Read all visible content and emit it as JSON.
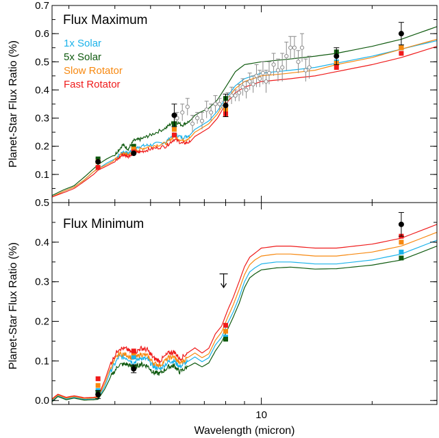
{
  "colors": {
    "solar1x": "#1ab2ea",
    "solar5x": "#0f5a0f",
    "slow": "#f7880f",
    "fast": "#ef1a1a",
    "obs": "#000000",
    "hires": "#8a8a8a"
  },
  "chart_data": [
    {
      "type": "line",
      "title": "Flux Maximum",
      "xlabel": "",
      "ylabel": "Planet-Star Flux Ratio (%)",
      "x_scale": "log",
      "xlim": [
        2.7,
        30
      ],
      "ylim": [
        0.0,
        0.7
      ],
      "yticks": [
        0.1,
        0.2,
        0.3,
        0.4,
        0.5,
        0.6,
        0.7
      ],
      "ytick_labels": [
        "0.1",
        "0.2",
        "0.3",
        "0.4",
        "0.5",
        "0.6",
        "0.7"
      ],
      "legend": [
        "1x Solar",
        "5x Solar",
        "Slow Rotator",
        "Fast Rotator"
      ],
      "legend_position": "top-left",
      "series": [
        {
          "name": "1x Solar",
          "color_key": "solar1x",
          "noise": true,
          "x": [
            2.7,
            2.9,
            3.1,
            3.3,
            3.5,
            3.6,
            3.8,
            4.0,
            4.2,
            4.35,
            4.5,
            4.7,
            5.0,
            5.5,
            5.8,
            6.1,
            6.4,
            6.6,
            6.8,
            7.2,
            7.6,
            8.0,
            8.5,
            9.0,
            9.5,
            10.0,
            11,
            12,
            14,
            16,
            20,
            24,
            30
          ],
          "y": [
            0.02,
            0.04,
            0.055,
            0.08,
            0.11,
            0.12,
            0.14,
            0.155,
            0.18,
            0.175,
            0.19,
            0.2,
            0.205,
            0.215,
            0.245,
            0.23,
            0.24,
            0.26,
            0.27,
            0.29,
            0.325,
            0.37,
            0.415,
            0.44,
            0.45,
            0.46,
            0.465,
            0.47,
            0.48,
            0.495,
            0.52,
            0.545,
            0.575
          ]
        },
        {
          "name": "5x Solar",
          "color_key": "solar5x",
          "noise": true,
          "x": [
            2.7,
            2.9,
            3.1,
            3.3,
            3.5,
            3.6,
            3.8,
            4.0,
            4.2,
            4.35,
            4.5,
            4.7,
            5.0,
            5.5,
            5.8,
            6.1,
            6.4,
            6.6,
            6.8,
            7.2,
            7.6,
            8.0,
            8.5,
            9.0,
            9.5,
            10.0,
            11,
            12,
            14,
            16,
            20,
            24,
            30
          ],
          "y": [
            0.025,
            0.045,
            0.06,
            0.09,
            0.12,
            0.135,
            0.155,
            0.17,
            0.205,
            0.19,
            0.22,
            0.225,
            0.24,
            0.265,
            0.29,
            0.275,
            0.29,
            0.31,
            0.32,
            0.335,
            0.365,
            0.41,
            0.465,
            0.49,
            0.495,
            0.5,
            0.505,
            0.51,
            0.52,
            0.53,
            0.555,
            0.58,
            0.625
          ]
        },
        {
          "name": "Slow Rotator",
          "color_key": "slow",
          "noise": true,
          "x": [
            2.7,
            2.9,
            3.1,
            3.3,
            3.5,
            3.6,
            3.8,
            4.0,
            4.2,
            4.35,
            4.5,
            4.7,
            5.0,
            5.5,
            5.8,
            6.1,
            6.4,
            6.6,
            6.8,
            7.2,
            7.6,
            8.0,
            8.5,
            9.0,
            9.5,
            10.0,
            11,
            12,
            14,
            16,
            20,
            24,
            30
          ],
          "y": [
            0.02,
            0.04,
            0.055,
            0.08,
            0.11,
            0.12,
            0.135,
            0.15,
            0.175,
            0.17,
            0.18,
            0.19,
            0.2,
            0.21,
            0.235,
            0.22,
            0.23,
            0.25,
            0.26,
            0.28,
            0.315,
            0.36,
            0.405,
            0.43,
            0.44,
            0.45,
            0.455,
            0.46,
            0.47,
            0.49,
            0.515,
            0.545,
            0.58
          ]
        },
        {
          "name": "Fast Rotator",
          "color_key": "fast",
          "noise": true,
          "x": [
            2.7,
            2.9,
            3.1,
            3.3,
            3.5,
            3.6,
            3.8,
            4.0,
            4.2,
            4.35,
            4.5,
            4.7,
            5.0,
            5.5,
            5.8,
            6.1,
            6.4,
            6.6,
            6.8,
            7.2,
            7.6,
            8.0,
            8.5,
            9.0,
            9.5,
            10.0,
            11,
            12,
            14,
            16,
            20,
            24,
            30
          ],
          "y": [
            0.02,
            0.035,
            0.05,
            0.075,
            0.1,
            0.115,
            0.13,
            0.145,
            0.17,
            0.165,
            0.175,
            0.18,
            0.19,
            0.2,
            0.225,
            0.21,
            0.215,
            0.235,
            0.245,
            0.265,
            0.3,
            0.35,
            0.39,
            0.41,
            0.42,
            0.43,
            0.435,
            0.44,
            0.45,
            0.465,
            0.49,
            0.515,
            0.555
          ]
        }
      ],
      "band_points": {
        "x": [
          3.6,
          4.5,
          5.8,
          8.0,
          16.0,
          24.0
        ],
        "1x Solar": [
          0.15,
          0.19,
          0.27,
          0.34,
          0.5,
          0.55
        ],
        "5x Solar": [
          0.155,
          0.2,
          0.28,
          0.37,
          0.535,
          0.55
        ],
        "Slow Rotator": [
          0.145,
          0.19,
          0.26,
          0.33,
          0.495,
          0.55
        ],
        "Fast Rotator": [
          0.125,
          0.18,
          0.24,
          0.315,
          0.48,
          0.53
        ]
      },
      "observations": {
        "x": [
          3.6,
          4.5,
          5.8,
          8.0,
          16.0,
          24.0
        ],
        "y": [
          0.145,
          0.175,
          0.31,
          0.345,
          0.52,
          0.6
        ],
        "err": [
          0.0,
          0.0,
          0.04,
          0.04,
          0.03,
          0.04
        ]
      },
      "spectrum": {
        "x": [
          5.9,
          6.1,
          6.3,
          6.5,
          6.7,
          6.9,
          7.1,
          7.3,
          7.5,
          7.7,
          7.9,
          8.1,
          8.3,
          8.5,
          8.7,
          8.9,
          9.1,
          9.3,
          9.5,
          9.7,
          9.9,
          10.1,
          10.3,
          10.5,
          10.8,
          11.1,
          11.4,
          11.7,
          12.0,
          12.3,
          12.6,
          12.9,
          13.2,
          13.5
        ],
        "y": [
          0.3,
          0.32,
          0.34,
          0.28,
          0.3,
          0.29,
          0.33,
          0.32,
          0.35,
          0.35,
          0.34,
          0.37,
          0.38,
          0.38,
          0.39,
          0.41,
          0.4,
          0.43,
          0.42,
          0.45,
          0.44,
          0.46,
          0.43,
          0.46,
          0.49,
          0.47,
          0.48,
          0.52,
          0.55,
          0.55,
          0.5,
          0.55,
          0.47,
          0.48
        ],
        "err": [
          0.02,
          0.03,
          0.03,
          0.03,
          0.02,
          0.03,
          0.03,
          0.03,
          0.03,
          0.02,
          0.02,
          0.02,
          0.03,
          0.02,
          0.03,
          0.03,
          0.03,
          0.03,
          0.03,
          0.04,
          0.03,
          0.04,
          0.04,
          0.04,
          0.04,
          0.04,
          0.05,
          0.05,
          0.04,
          0.04,
          0.04,
          0.05,
          0.04,
          0.04
        ]
      }
    },
    {
      "type": "line",
      "title": "Flux Minimum",
      "xlabel": "Wavelength (micron)",
      "ylabel": "Planet-Star Flux Ratio (%)",
      "x_scale": "log",
      "xlim": [
        2.7,
        30
      ],
      "xticks": [
        10
      ],
      "xtick_labels": [
        "10"
      ],
      "ylim": [
        -0.01,
        0.5
      ],
      "yticks": [
        0.0,
        0.1,
        0.2,
        0.3,
        0.4,
        0.5
      ],
      "ytick_labels": [
        "0.0",
        "0.1",
        "0.2",
        "0.3",
        "0.4",
        "0.5"
      ],
      "series": [
        {
          "name": "1x Solar",
          "color_key": "solar1x",
          "noise": true,
          "x": [
            2.7,
            2.8,
            2.95,
            3.1,
            3.3,
            3.5,
            3.6,
            3.75,
            3.9,
            4.1,
            4.3,
            4.5,
            4.7,
            4.9,
            5.1,
            5.3,
            5.6,
            5.8,
            6.0,
            6.3,
            6.6,
            6.9,
            7.2,
            7.5,
            7.8,
            8.1,
            8.4,
            8.7,
            9.0,
            9.3,
            9.6,
            10.0,
            11,
            12,
            14,
            16,
            20,
            24,
            30
          ],
          "y": [
            0.0,
            0.012,
            0.004,
            0.008,
            0.003,
            0.004,
            0.005,
            0.035,
            0.075,
            0.11,
            0.108,
            0.095,
            0.108,
            0.104,
            0.085,
            0.08,
            0.098,
            0.1,
            0.085,
            0.098,
            0.11,
            0.098,
            0.108,
            0.14,
            0.16,
            0.195,
            0.225,
            0.26,
            0.3,
            0.325,
            0.335,
            0.345,
            0.35,
            0.35,
            0.345,
            0.345,
            0.355,
            0.37,
            0.405
          ]
        },
        {
          "name": "5x Solar",
          "color_key": "solar5x",
          "noise": true,
          "x": [
            2.7,
            2.8,
            2.95,
            3.1,
            3.3,
            3.5,
            3.6,
            3.75,
            3.9,
            4.1,
            4.3,
            4.5,
            4.7,
            4.9,
            5.1,
            5.3,
            5.6,
            5.8,
            6.0,
            6.3,
            6.6,
            6.9,
            7.2,
            7.5,
            7.8,
            8.1,
            8.4,
            8.7,
            9.0,
            9.3,
            9.6,
            10.0,
            11,
            12,
            14,
            16,
            20,
            24,
            30
          ],
          "y": [
            -0.003,
            0.01,
            0.002,
            0.006,
            0.001,
            0.002,
            0.003,
            0.028,
            0.06,
            0.09,
            0.092,
            0.082,
            0.092,
            0.088,
            0.07,
            0.068,
            0.085,
            0.088,
            0.072,
            0.085,
            0.095,
            0.085,
            0.095,
            0.125,
            0.148,
            0.18,
            0.212,
            0.245,
            0.285,
            0.31,
            0.32,
            0.33,
            0.335,
            0.337,
            0.332,
            0.333,
            0.342,
            0.355,
            0.39
          ]
        },
        {
          "name": "Slow Rotator",
          "color_key": "slow",
          "noise": true,
          "x": [
            2.7,
            2.8,
            2.95,
            3.1,
            3.3,
            3.5,
            3.6,
            3.75,
            3.9,
            4.1,
            4.3,
            4.5,
            4.7,
            4.9,
            5.1,
            5.3,
            5.6,
            5.8,
            6.0,
            6.3,
            6.6,
            6.9,
            7.2,
            7.5,
            7.8,
            8.1,
            8.4,
            8.7,
            9.0,
            9.3,
            9.6,
            10.0,
            11,
            12,
            14,
            16,
            20,
            24,
            30
          ],
          "y": [
            0.002,
            0.014,
            0.006,
            0.01,
            0.005,
            0.006,
            0.008,
            0.042,
            0.085,
            0.118,
            0.116,
            0.104,
            0.117,
            0.113,
            0.094,
            0.089,
            0.108,
            0.11,
            0.094,
            0.108,
            0.12,
            0.108,
            0.118,
            0.152,
            0.173,
            0.21,
            0.243,
            0.28,
            0.318,
            0.343,
            0.355,
            0.365,
            0.37,
            0.37,
            0.365,
            0.365,
            0.375,
            0.39,
            0.425
          ]
        },
        {
          "name": "Fast Rotator",
          "color_key": "fast",
          "noise": true,
          "x": [
            2.7,
            2.8,
            2.95,
            3.1,
            3.3,
            3.5,
            3.6,
            3.75,
            3.9,
            4.1,
            4.3,
            4.5,
            4.7,
            4.9,
            5.1,
            5.3,
            5.6,
            5.8,
            6.0,
            6.3,
            6.6,
            6.9,
            7.2,
            7.5,
            7.8,
            8.1,
            8.4,
            8.7,
            9.0,
            9.3,
            9.6,
            10.0,
            11,
            12,
            14,
            16,
            20,
            24,
            30
          ],
          "y": [
            0.004,
            0.016,
            0.008,
            0.012,
            0.007,
            0.008,
            0.01,
            0.05,
            0.095,
            0.132,
            0.13,
            0.118,
            0.132,
            0.128,
            0.107,
            0.1,
            0.12,
            0.123,
            0.105,
            0.12,
            0.133,
            0.12,
            0.132,
            0.168,
            0.188,
            0.228,
            0.262,
            0.3,
            0.338,
            0.362,
            0.372,
            0.385,
            0.39,
            0.39,
            0.385,
            0.385,
            0.395,
            0.41,
            0.445
          ]
        }
      ],
      "band_points": {
        "x": [
          3.6,
          4.5,
          8.0,
          24.0
        ],
        "1x Solar": [
          0.025,
          0.11,
          0.16,
          0.375
        ],
        "5x Solar": [
          0.02,
          0.085,
          0.155,
          0.36
        ],
        "Slow Rotator": [
          0.038,
          0.12,
          0.175,
          0.4
        ],
        "Fast Rotator": [
          0.055,
          0.125,
          0.19,
          0.415
        ]
      },
      "observations": {
        "x": [
          3.6,
          4.5,
          24.0
        ],
        "y": [
          0.015,
          0.08,
          0.445
        ],
        "err": [
          0.01,
          0.01,
          0.03
        ]
      },
      "upper_limit": {
        "x": 7.9,
        "y": 0.32
      }
    }
  ]
}
